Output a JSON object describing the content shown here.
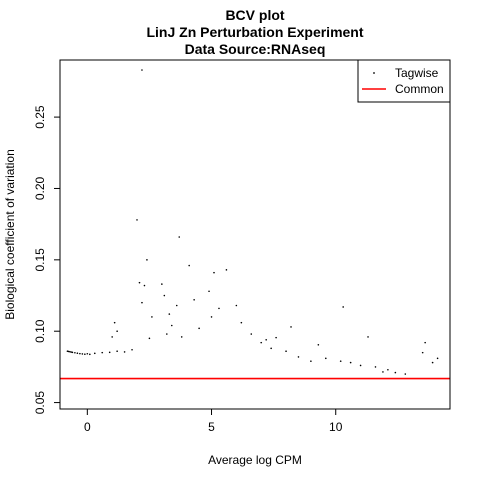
{
  "chart_data": {
    "type": "scatter",
    "title_lines": [
      "BCV plot",
      "LinJ Zn Perturbation Experiment",
      "Data Source:RNAseq"
    ],
    "xlabel": "Average log CPM",
    "ylabel": "Biological coefficient of variation",
    "xlim": [
      -1.1,
      14.6
    ],
    "ylim": [
      0.0455,
      0.29
    ],
    "x_ticks": [
      0,
      5,
      10
    ],
    "y_ticks": [
      0.05,
      0.1,
      0.15,
      0.2,
      0.25
    ],
    "y_tick_labels": [
      "0.05",
      "0.10",
      "0.15",
      "0.20",
      "0.25"
    ],
    "legend": {
      "position": "top-right",
      "entries": [
        {
          "label": "Tagwise",
          "symbol": "point"
        },
        {
          "label": "Common",
          "symbol": "line"
        }
      ]
    },
    "series": [
      {
        "name": "Tagwise",
        "color": "#000000",
        "points": [
          [
            -0.8,
            0.086
          ],
          [
            -0.75,
            0.0858
          ],
          [
            -0.7,
            0.0856
          ],
          [
            -0.65,
            0.0854
          ],
          [
            -0.6,
            0.0852
          ],
          [
            -0.5,
            0.0849
          ],
          [
            -0.4,
            0.0846
          ],
          [
            -0.3,
            0.0843
          ],
          [
            -0.2,
            0.0841
          ],
          [
            -0.1,
            0.0839
          ],
          [
            0.0,
            0.0842
          ],
          [
            0.1,
            0.0838
          ],
          [
            0.3,
            0.0845
          ],
          [
            0.6,
            0.085
          ],
          [
            0.9,
            0.0852
          ],
          [
            1.2,
            0.086
          ],
          [
            1.5,
            0.0855
          ],
          [
            1.8,
            0.087
          ],
          [
            1.0,
            0.096
          ],
          [
            1.2,
            0.1
          ],
          [
            1.1,
            0.106
          ],
          [
            2.2,
            0.283
          ],
          [
            2.0,
            0.178
          ],
          [
            2.1,
            0.134
          ],
          [
            2.3,
            0.132
          ],
          [
            2.4,
            0.15
          ],
          [
            2.2,
            0.12
          ],
          [
            2.6,
            0.11
          ],
          [
            2.5,
            0.095
          ],
          [
            3.0,
            0.133
          ],
          [
            3.1,
            0.125
          ],
          [
            3.3,
            0.112
          ],
          [
            3.2,
            0.098
          ],
          [
            3.4,
            0.104
          ],
          [
            3.7,
            0.166
          ],
          [
            3.6,
            0.118
          ],
          [
            3.8,
            0.096
          ],
          [
            4.1,
            0.146
          ],
          [
            4.3,
            0.122
          ],
          [
            4.5,
            0.102
          ],
          [
            4.9,
            0.128
          ],
          [
            5.0,
            0.11
          ],
          [
            5.1,
            0.141
          ],
          [
            5.3,
            0.116
          ],
          [
            5.6,
            0.143
          ],
          [
            6.0,
            0.118
          ],
          [
            6.2,
            0.106
          ],
          [
            6.6,
            0.098
          ],
          [
            7.0,
            0.092
          ],
          [
            7.4,
            0.088
          ],
          [
            7.2,
            0.094
          ],
          [
            8.0,
            0.086
          ],
          [
            8.5,
            0.082
          ],
          [
            9.0,
            0.079
          ],
          [
            9.6,
            0.081
          ],
          [
            10.2,
            0.079
          ],
          [
            10.6,
            0.078
          ],
          [
            11.0,
            0.076
          ],
          [
            11.6,
            0.075
          ],
          [
            12.1,
            0.073
          ],
          [
            12.8,
            0.07
          ],
          [
            13.5,
            0.085
          ],
          [
            13.6,
            0.092
          ],
          [
            13.9,
            0.078
          ],
          [
            14.1,
            0.081
          ],
          [
            10.3,
            0.117
          ],
          [
            11.3,
            0.096
          ],
          [
            9.3,
            0.0905
          ],
          [
            8.2,
            0.103
          ],
          [
            7.6,
            0.0955
          ],
          [
            12.4,
            0.071
          ],
          [
            11.9,
            0.0715
          ]
        ]
      }
    ],
    "common": {
      "name": "Common",
      "value": 0.0668,
      "color": "#ff0000"
    }
  }
}
